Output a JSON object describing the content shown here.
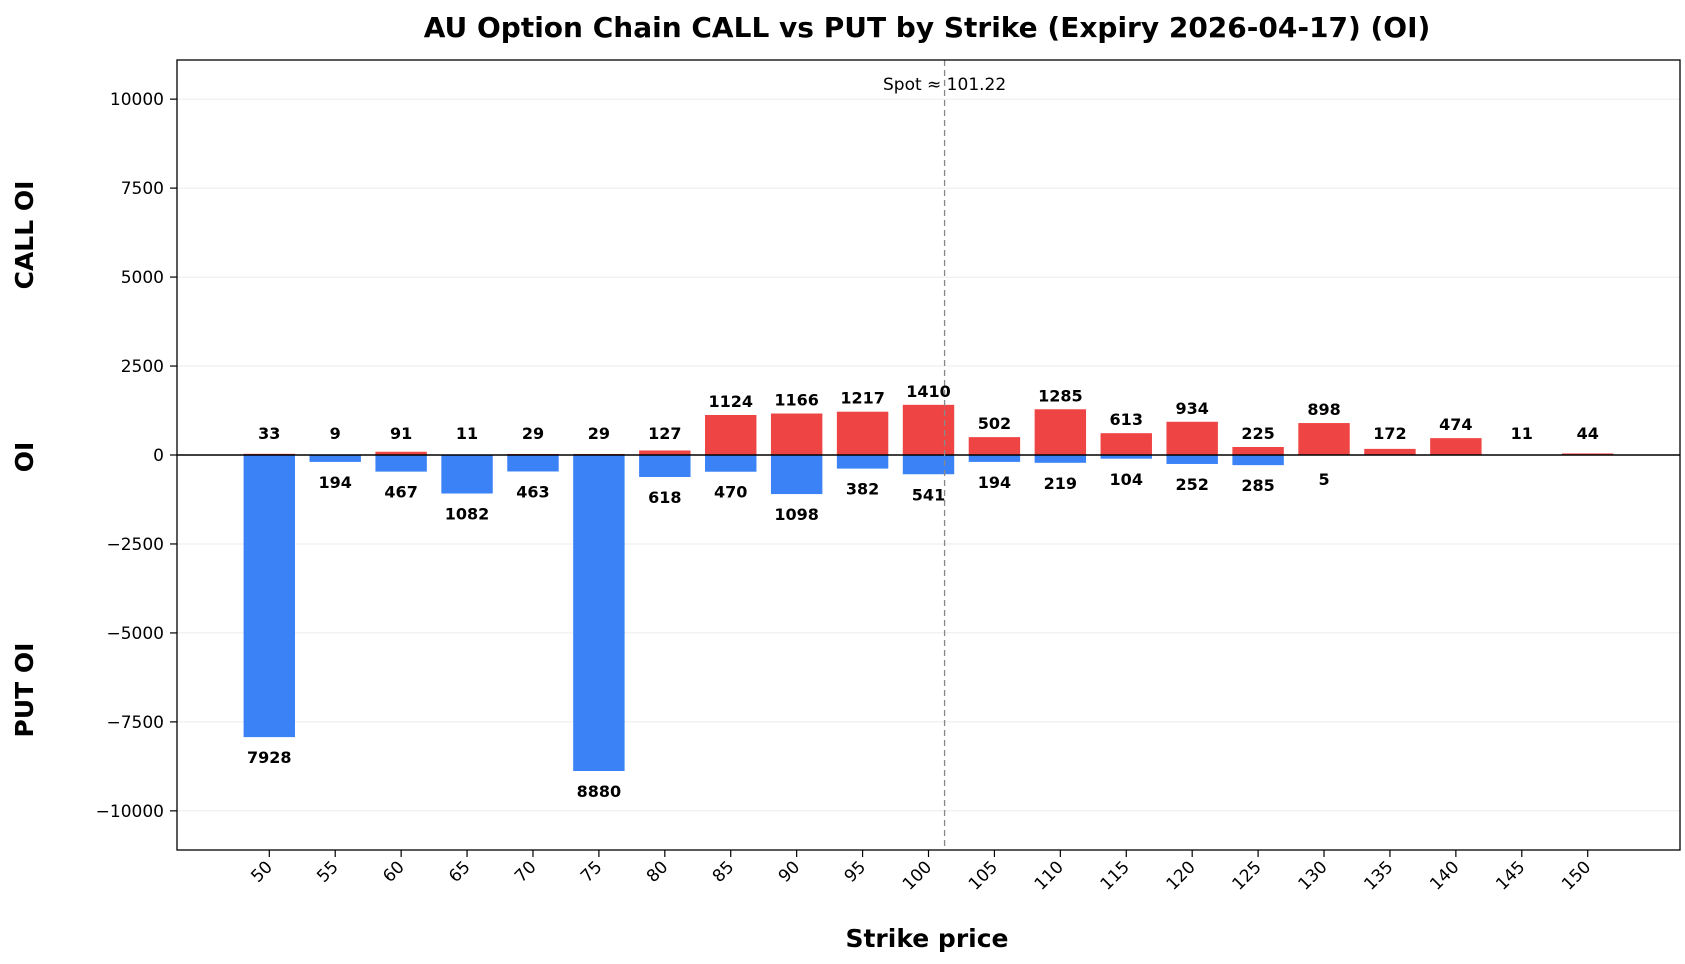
{
  "chart_data": {
    "type": "bar",
    "title": "AU Option Chain CALL vs PUT by Strike (Expiry 2026-04-17) (OI)",
    "xlabel": "Strike price",
    "ylabel": "OI",
    "ylabel_top": "CALL OI",
    "ylabel_bottom": "PUT OI",
    "categories": [
      "50",
      "55",
      "60",
      "65",
      "70",
      "75",
      "80",
      "85",
      "90",
      "95",
      "100",
      "105",
      "110",
      "115",
      "120",
      "125",
      "130",
      "135",
      "140",
      "145",
      "150"
    ],
    "series": [
      {
        "name": "CALL",
        "color": "#ef4444",
        "values": [
          33,
          9,
          91,
          11,
          29,
          29,
          127,
          1124,
          1166,
          1217,
          1410,
          502,
          1285,
          613,
          934,
          225,
          898,
          172,
          474,
          11,
          44
        ]
      },
      {
        "name": "PUT",
        "color": "#3b82f6",
        "values": [
          7928,
          194,
          467,
          1082,
          463,
          8880,
          618,
          470,
          1098,
          382,
          541,
          194,
          219,
          104,
          252,
          285,
          5,
          null,
          null,
          null,
          null
        ]
      }
    ],
    "ylim": [
      -11100,
      11100
    ],
    "yticks": [
      10000,
      7500,
      5000,
      2500,
      0,
      -2500,
      -5000,
      -7500,
      -10000
    ],
    "ytick_labels": [
      "10000",
      "7500",
      "5000",
      "2500",
      "0",
      "−2500",
      "−5000",
      "−7500",
      "−10000"
    ],
    "grid": "horizontal",
    "spot_line": {
      "value": 101.22,
      "label": "Spot ≈ 101.22"
    }
  }
}
